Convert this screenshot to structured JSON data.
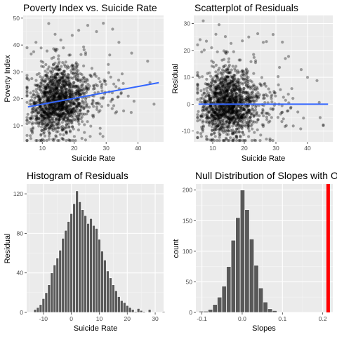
{
  "chart_data": [
    {
      "type": "scatter",
      "title": "Poverty Index vs. Suicide Rate",
      "xlabel": "Suicide Rate",
      "ylabel": "Poverty Index",
      "xlim": [
        4,
        48
      ],
      "ylim": [
        4,
        51
      ],
      "xticks": [
        10,
        20,
        30,
        40
      ],
      "yticks": [
        10,
        20,
        30,
        40,
        50
      ],
      "grid": true,
      "point_color": "#000000",
      "point_opacity": 0.35,
      "n_points": 1450,
      "fit_line": {
        "x": [
          5.5,
          46.5
        ],
        "y": [
          17.0,
          26.0
        ],
        "color": "#3366FF"
      },
      "sample_points": [
        [
          12,
          48
        ],
        [
          8,
          41
        ],
        [
          14,
          44
        ],
        [
          27,
          45
        ],
        [
          34,
          41
        ],
        [
          43,
          34
        ],
        [
          45,
          18
        ],
        [
          25,
          6
        ],
        [
          10,
          5
        ],
        [
          38,
          37
        ]
      ]
    },
    {
      "type": "scatter",
      "title": "Scatterplot of Residuals",
      "xlabel": "Suicide Rate",
      "ylabel": "Residual",
      "xlim": [
        4,
        48
      ],
      "ylim": [
        -14,
        33
      ],
      "xticks": [
        10,
        20,
        30,
        40
      ],
      "yticks": [
        -10,
        0,
        10,
        20,
        30
      ],
      "grid": true,
      "point_color": "#000000",
      "point_opacity": 0.35,
      "n_points": 1450,
      "fit_line": {
        "x": [
          5.5,
          46.5
        ],
        "y": [
          0,
          0
        ],
        "color": "#3366FF"
      },
      "sample_points": [
        [
          7,
          31
        ],
        [
          6,
          24
        ],
        [
          11,
          26
        ],
        [
          26,
          23
        ],
        [
          33,
          17
        ],
        [
          40,
          10
        ],
        [
          45,
          -8
        ],
        [
          27,
          -13
        ],
        [
          8,
          -12
        ],
        [
          44,
          -5
        ]
      ]
    },
    {
      "type": "bar",
      "title": "Histogram of Residuals",
      "xlabel": "Suicide Rate",
      "ylabel": "Residual",
      "xlim": [
        -16,
        33
      ],
      "ylim": [
        0,
        130
      ],
      "xticks": [
        -10,
        0,
        10,
        20,
        30
      ],
      "yticks": [
        0,
        40,
        80,
        120
      ],
      "bar_color": "#595959",
      "bar_outline": "#ffffff",
      "bins_start": -13.5,
      "bin_width": 1,
      "values": [
        3,
        5,
        8,
        14,
        20,
        28,
        40,
        48,
        55,
        63,
        75,
        83,
        92,
        100,
        110,
        123,
        112,
        104,
        98,
        90,
        95,
        88,
        85,
        74,
        62,
        53,
        42,
        35,
        28,
        22,
        16,
        12,
        10,
        7,
        5,
        3,
        1,
        4,
        2,
        1,
        0,
        3,
        0,
        0,
        0,
        0,
        1
      ]
    },
    {
      "type": "bar",
      "title": "Null Distribution of Slopes with Obs",
      "xlabel": "Slopes",
      "ylabel": "count",
      "xlim": [
        -0.115,
        0.225
      ],
      "ylim": [
        0,
        210
      ],
      "xticks": [
        "-0.1",
        "0.0",
        "0.1",
        "0.2"
      ],
      "xtick_values": [
        -0.1,
        0.0,
        0.1,
        0.2
      ],
      "yticks": [
        0,
        50,
        100,
        150,
        200
      ],
      "bar_color": "#595959",
      "bar_outline": "#ffffff",
      "bins_start": -0.1075,
      "bin_width": 0.0114,
      "values": [
        2,
        2,
        5,
        13,
        25,
        43,
        75,
        118,
        155,
        200,
        168,
        120,
        77,
        40,
        17,
        6,
        3
      ],
      "observed_slope": 0.2135,
      "observed_color": "#FF0000"
    }
  ],
  "labels": {
    "p1": {
      "title": "Poverty Index vs. Suicide Rate",
      "xlabel": "Suicide Rate",
      "ylabel": "Poverty Index",
      "xt": [
        "10",
        "20",
        "30",
        "40"
      ],
      "yt": [
        "10",
        "20",
        "30",
        "40",
        "50"
      ]
    },
    "p2": {
      "title": "Scatterplot of Residuals",
      "xlabel": "Suicide Rate",
      "ylabel": "Residual",
      "xt": [
        "10",
        "20",
        "30",
        "40"
      ],
      "yt": [
        "-10",
        "0",
        "10",
        "20",
        "30"
      ]
    },
    "p3": {
      "title": "Histogram of Residuals",
      "xlabel": "Suicide Rate",
      "ylabel": "Residual",
      "xt": [
        "-10",
        "0",
        "10",
        "20",
        "30"
      ],
      "yt": [
        "0",
        "40",
        "80",
        "120"
      ]
    },
    "p4": {
      "title": "Null Distribution of Slopes with Obs",
      "xlabel": "Slopes",
      "ylabel": "count",
      "xt": [
        "-0.1",
        "0.0",
        "0.1",
        "0.2"
      ],
      "yt": [
        "0",
        "50",
        "100",
        "150",
        "200"
      ]
    }
  },
  "colors": {
    "panel_bg": "#EBEBEB",
    "grid_major": "#FFFFFF",
    "fit_line": "#3366FF",
    "observed_line": "#FF0000",
    "bar_fill": "#595959"
  }
}
